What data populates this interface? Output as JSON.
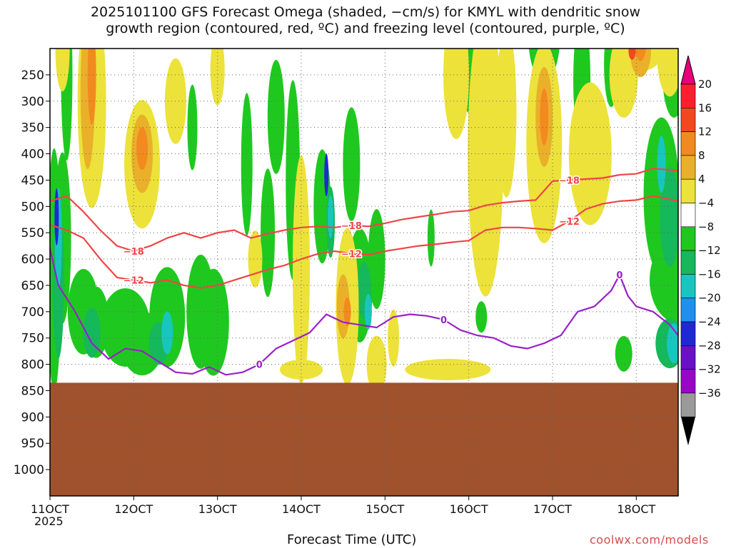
{
  "chart_data": {
    "type": "heatmap",
    "title_lines": [
      "2025101100 GFS Forecast Omega (shaded, −cm/s) for KMYL with dendritic snow",
      "growth region (contoured, red, ºC) and freezing level (contoured, purple, ºC)"
    ],
    "xlabel": "Forecast Time (UTC)",
    "x_year_label": "2025",
    "credit": "coolwx.com/models",
    "x_ticks": [
      "11OCT",
      "12OCT",
      "13OCT",
      "14OCT",
      "15OCT",
      "16OCT",
      "17OCT",
      "18OCT"
    ],
    "x_range_days": [
      11.0,
      18.5
    ],
    "y_ticks": [
      250,
      300,
      350,
      400,
      450,
      500,
      550,
      600,
      650,
      700,
      750,
      800,
      850,
      900,
      950,
      1000
    ],
    "y_range_hpa": [
      200,
      1050
    ],
    "terrain_top_hpa": 835,
    "colorbar": {
      "labels": [
        "20",
        "16",
        "12",
        "8",
        "4",
        "−4",
        "−8",
        "−12",
        "−16",
        "−20",
        "−24",
        "−28",
        "−32",
        "−36"
      ],
      "colors": [
        "#ff1f2f",
        "#f4471f",
        "#f28a1f",
        "#eab02a",
        "#ece23a",
        "#ffffff",
        "#1fc81f",
        "#15b85a",
        "#18c6c0",
        "#1f8ff0",
        "#1f28d6",
        "#6a10c8",
        "#9a06c8",
        "#9a9a9a"
      ],
      "top_arrow_color": "#e6007a",
      "bottom_arrow_color": "#000000"
    },
    "contour_labels": {
      "dgz_top": "−18",
      "dgz_bottom": "−12",
      "freezing": "0"
    },
    "series": [
      {
        "label": "−18",
        "color": "#f04545",
        "x": [
          11.0,
          11.2,
          11.4,
          11.6,
          11.8,
          12.0,
          12.2,
          12.4,
          12.6,
          12.8,
          13.0,
          13.2,
          13.4,
          13.6,
          13.8,
          14.0,
          14.2,
          14.4,
          14.6,
          14.8,
          15.0,
          15.2,
          15.4,
          15.6,
          15.8,
          16.0,
          16.2,
          16.4,
          16.6,
          16.8,
          17.0,
          17.2,
          17.4,
          17.6,
          17.8,
          18.0,
          18.2,
          18.5
        ],
        "y": [
          490,
          480,
          510,
          545,
          575,
          585,
          575,
          560,
          550,
          560,
          550,
          545,
          560,
          552,
          545,
          540,
          538,
          540,
          536,
          538,
          532,
          525,
          520,
          515,
          510,
          508,
          498,
          493,
          490,
          488,
          452,
          450,
          448,
          446,
          440,
          438,
          428,
          432
        ]
      },
      {
        "label": "−12",
        "color": "#f04545",
        "x": [
          11.0,
          11.2,
          11.4,
          11.6,
          11.8,
          12.0,
          12.2,
          12.4,
          12.6,
          12.8,
          13.0,
          13.2,
          13.4,
          13.6,
          13.8,
          14.0,
          14.2,
          14.4,
          14.6,
          14.8,
          15.0,
          15.2,
          15.4,
          15.6,
          15.8,
          16.0,
          16.2,
          16.4,
          16.6,
          16.8,
          17.0,
          17.2,
          17.4,
          17.6,
          17.8,
          18.0,
          18.2,
          18.5
        ],
        "y": [
          535,
          545,
          560,
          600,
          635,
          640,
          645,
          640,
          650,
          655,
          650,
          640,
          630,
          620,
          612,
          600,
          590,
          585,
          590,
          592,
          585,
          580,
          575,
          572,
          568,
          565,
          545,
          540,
          540,
          542,
          545,
          528,
          505,
          495,
          490,
          488,
          480,
          490
        ]
      },
      {
        "label": "0",
        "color": "#9a20c8",
        "x": [
          11.0,
          11.1,
          11.3,
          11.5,
          11.7,
          11.9,
          12.1,
          12.3,
          12.5,
          12.7,
          12.9,
          13.1,
          13.3,
          13.5,
          13.7,
          13.9,
          14.1,
          14.3,
          14.5,
          14.7,
          14.9,
          15.1,
          15.3,
          15.5,
          15.7,
          15.9,
          16.1,
          16.3,
          16.5,
          16.7,
          16.9,
          17.1,
          17.3,
          17.5,
          17.7,
          17.8,
          17.9,
          18.0,
          18.2,
          18.4,
          18.5
        ],
        "y": [
          580,
          650,
          700,
          760,
          790,
          770,
          775,
          795,
          815,
          818,
          805,
          820,
          815,
          800,
          770,
          755,
          740,
          705,
          720,
          725,
          730,
          710,
          705,
          708,
          715,
          735,
          745,
          750,
          765,
          770,
          760,
          745,
          700,
          690,
          660,
          630,
          670,
          690,
          700,
          725,
          745
        ]
      }
    ]
  }
}
